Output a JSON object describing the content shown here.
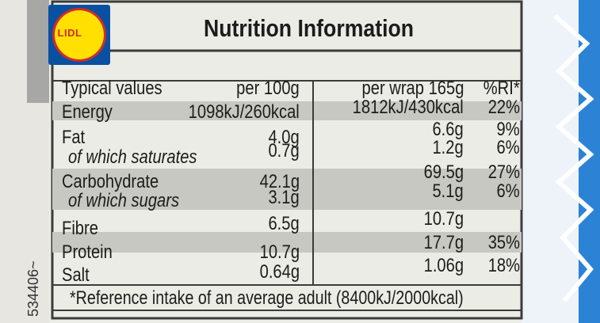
{
  "brand": {
    "logo_text": "LIDL"
  },
  "title": "Nutrition Information",
  "header": {
    "label": "Typical values",
    "per100": "per 100g",
    "perwrap": "per wrap 165g",
    "ri": "%RI*"
  },
  "rows": [
    {
      "name": "Energy",
      "per100": "1098kJ/260kcal",
      "perwrap": "1812kJ/430kcal",
      "ri": "22%"
    },
    {
      "name": "Fat",
      "per100": "4.0g",
      "perwrap": "6.6g",
      "ri": "9%"
    },
    {
      "name": "of which saturates",
      "per100": "0.7g",
      "perwrap": "1.2g",
      "ri": "6%"
    },
    {
      "name": "Carbohydrate",
      "per100": "42.1g",
      "perwrap": "69.5g",
      "ri": "27%"
    },
    {
      "name": "of which sugars",
      "per100": "3.1g",
      "perwrap": "5.1g",
      "ri": "6%"
    },
    {
      "name": "Fibre",
      "per100": "6.5g",
      "perwrap": "10.7g",
      "ri": ""
    },
    {
      "name": "Protein",
      "per100": "10.7g",
      "perwrap": "17.7g",
      "ri": "35%"
    },
    {
      "name": "Salt",
      "per100": "0.64g",
      "perwrap": "1.06g",
      "ri": "18%"
    }
  ],
  "footnote": "*Reference intake of an average adult (8400kJ/2000kcal)",
  "side_code": "534406~",
  "colors": {
    "label_background": "#ecece6",
    "shaded_row": "#c8c8c2",
    "text": "#1c1c1c",
    "logo_blue": "#0a50a0",
    "logo_yellow": "#ffe000",
    "logo_red": "#d32b2b",
    "package_blue": "#1f7fd6"
  }
}
